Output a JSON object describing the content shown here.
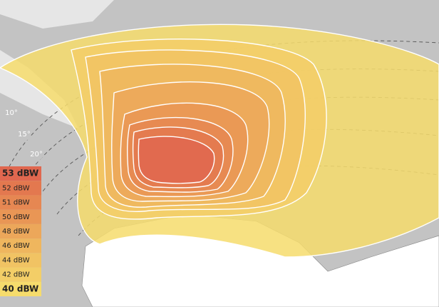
{
  "elevation_labels": [
    "10°",
    "15°",
    "20°"
  ],
  "legend": {
    "items": [
      {
        "label": "53 dBW",
        "color": "#e0674f"
      },
      {
        "label": "52 dBW",
        "color": "#e3784f"
      },
      {
        "label": "51 dBW",
        "color": "#e68752"
      },
      {
        "label": "50 dBW",
        "color": "#e99655"
      },
      {
        "label": "48 dBW",
        "color": "#eca75a"
      },
      {
        "label": "46 dBW",
        "color": "#efb65e"
      },
      {
        "label": "44 dBW",
        "color": "#f1c363"
      },
      {
        "label": "42 dBW",
        "color": "#f3ce67"
      },
      {
        "label": "40 dBW",
        "color": "#f6dc6c"
      }
    ]
  }
}
